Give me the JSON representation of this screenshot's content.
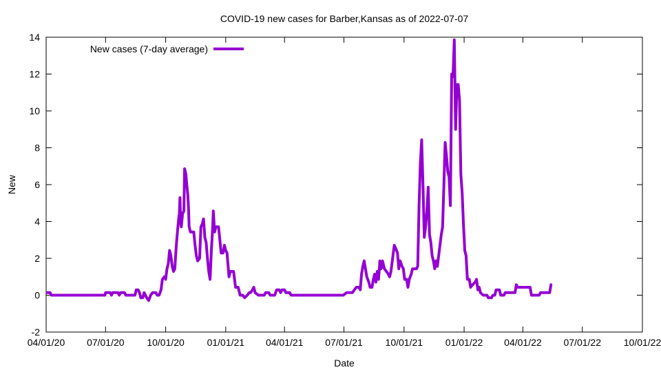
{
  "chart_data": {
    "type": "line",
    "title": "COVID-19 new cases for Barber,Kansas as of 2022-07-07",
    "xlabel": "Date",
    "ylabel": "New",
    "xlim": [
      "2020-04-01",
      "2022-10-01"
    ],
    "ylim": [
      -2,
      14
    ],
    "x_ticks": [
      "04/01/20",
      "07/01/20",
      "10/01/20",
      "01/01/21",
      "04/01/21",
      "07/01/21",
      "10/01/21",
      "01/01/22",
      "04/01/22",
      "07/01/22",
      "10/01/22"
    ],
    "y_ticks": [
      -2,
      0,
      2,
      4,
      6,
      8,
      10,
      12,
      14
    ],
    "grid": false,
    "legend_position": "top-left",
    "series": [
      {
        "name": "New cases (7-day average)",
        "color": "#9400d3",
        "points": [
          [
            "2020-04-03",
            0.14
          ],
          [
            "2020-04-07",
            0.14
          ],
          [
            "2020-04-09",
            0
          ],
          [
            "2020-06-30",
            0
          ],
          [
            "2020-07-01",
            0.14
          ],
          [
            "2020-07-08",
            0.14
          ],
          [
            "2020-07-10",
            0
          ],
          [
            "2020-07-12",
            0.14
          ],
          [
            "2020-07-20",
            0.14
          ],
          [
            "2020-07-22",
            0
          ],
          [
            "2020-07-24",
            0.14
          ],
          [
            "2020-07-30",
            0.14
          ],
          [
            "2020-08-01",
            0
          ],
          [
            "2020-08-15",
            0
          ],
          [
            "2020-08-17",
            0.29
          ],
          [
            "2020-08-20",
            0.29
          ],
          [
            "2020-08-22",
            0.14
          ],
          [
            "2020-08-24",
            -0.14
          ],
          [
            "2020-08-27",
            -0.14
          ],
          [
            "2020-08-29",
            0.14
          ],
          [
            "2020-09-02",
            -0.14
          ],
          [
            "2020-09-05",
            -0.29
          ],
          [
            "2020-09-08",
            0
          ],
          [
            "2020-09-11",
            0.14
          ],
          [
            "2020-09-16",
            0.14
          ],
          [
            "2020-09-18",
            0
          ],
          [
            "2020-09-21",
            0
          ],
          [
            "2020-09-24",
            0.29
          ],
          [
            "2020-09-26",
            0.86
          ],
          [
            "2020-09-29",
            1.0
          ],
          [
            "2020-10-01",
            0.86
          ],
          [
            "2020-10-03",
            1.43
          ],
          [
            "2020-10-05",
            1.71
          ],
          [
            "2020-10-07",
            2.43
          ],
          [
            "2020-10-09",
            2.14
          ],
          [
            "2020-10-11",
            1.57
          ],
          [
            "2020-10-13",
            1.29
          ],
          [
            "2020-10-15",
            1.43
          ],
          [
            "2020-10-17",
            2.57
          ],
          [
            "2020-10-19",
            3.43
          ],
          [
            "2020-10-21",
            4.14
          ],
          [
            "2020-10-22",
            4.43
          ],
          [
            "2020-10-23",
            5.29
          ],
          [
            "2020-10-24",
            4.0
          ],
          [
            "2020-10-25",
            3.71
          ],
          [
            "2020-10-27",
            4.43
          ],
          [
            "2020-10-29",
            4.57
          ],
          [
            "2020-10-30",
            6.86
          ],
          [
            "2020-11-01",
            6.57
          ],
          [
            "2020-11-02",
            6.14
          ],
          [
            "2020-11-04",
            5.43
          ],
          [
            "2020-11-05",
            4.71
          ],
          [
            "2020-11-06",
            3.71
          ],
          [
            "2020-11-08",
            3.43
          ],
          [
            "2020-11-13",
            3.43
          ],
          [
            "2020-11-15",
            2.71
          ],
          [
            "2020-11-17",
            2.14
          ],
          [
            "2020-11-19",
            1.86
          ],
          [
            "2020-11-22",
            2.0
          ],
          [
            "2020-11-24",
            3.71
          ],
          [
            "2020-11-26",
            3.86
          ],
          [
            "2020-11-28",
            4.14
          ],
          [
            "2020-11-30",
            3.14
          ],
          [
            "2020-12-02",
            2.86
          ],
          [
            "2020-12-04",
            2.0
          ],
          [
            "2020-12-06",
            1.29
          ],
          [
            "2020-12-08",
            0.86
          ],
          [
            "2020-12-10",
            2.43
          ],
          [
            "2020-12-12",
            3.71
          ],
          [
            "2020-12-13",
            4.57
          ],
          [
            "2020-12-15",
            3.43
          ],
          [
            "2020-12-17",
            3.71
          ],
          [
            "2020-12-21",
            3.71
          ],
          [
            "2020-12-23",
            3.0
          ],
          [
            "2020-12-25",
            2.29
          ],
          [
            "2020-12-28",
            2.29
          ],
          [
            "2020-12-30",
            2.71
          ],
          [
            "2021-01-01",
            2.43
          ],
          [
            "2021-01-03",
            2.29
          ],
          [
            "2021-01-06",
            1.0
          ],
          [
            "2021-01-08",
            1.29
          ],
          [
            "2021-01-13",
            1.29
          ],
          [
            "2021-01-16",
            0.43
          ],
          [
            "2021-01-20",
            0.43
          ],
          [
            "2021-01-23",
            0
          ],
          [
            "2021-01-27",
            0
          ],
          [
            "2021-01-30",
            -0.14
          ],
          [
            "2021-02-03",
            0
          ],
          [
            "2021-02-06",
            0.14
          ],
          [
            "2021-02-08",
            0.14
          ],
          [
            "2021-02-11",
            0.29
          ],
          [
            "2021-02-13",
            0.43
          ],
          [
            "2021-02-15",
            0.14
          ],
          [
            "2021-02-20",
            0
          ],
          [
            "2021-03-01",
            0
          ],
          [
            "2021-03-03",
            0.14
          ],
          [
            "2021-03-08",
            0.14
          ],
          [
            "2021-03-10",
            0
          ],
          [
            "2021-03-17",
            0
          ],
          [
            "2021-03-20",
            0.29
          ],
          [
            "2021-03-24",
            0.29
          ],
          [
            "2021-03-26",
            0.14
          ],
          [
            "2021-03-28",
            0.29
          ],
          [
            "2021-04-01",
            0.29
          ],
          [
            "2021-04-03",
            0.14
          ],
          [
            "2021-04-09",
            0.14
          ],
          [
            "2021-04-11",
            0
          ],
          [
            "2021-06-30",
            0
          ],
          [
            "2021-07-05",
            0.14
          ],
          [
            "2021-07-14",
            0.14
          ],
          [
            "2021-07-17",
            0.29
          ],
          [
            "2021-07-20",
            0.43
          ],
          [
            "2021-07-24",
            0.43
          ],
          [
            "2021-07-26",
            0.29
          ],
          [
            "2021-07-28",
            1.14
          ],
          [
            "2021-07-30",
            1.57
          ],
          [
            "2021-08-01",
            1.86
          ],
          [
            "2021-08-03",
            1.43
          ],
          [
            "2021-08-05",
            1.0
          ],
          [
            "2021-08-08",
            0.71
          ],
          [
            "2021-08-10",
            0.43
          ],
          [
            "2021-08-13",
            0.43
          ],
          [
            "2021-08-15",
            0.86
          ],
          [
            "2021-08-17",
            1.14
          ],
          [
            "2021-08-19",
            0.71
          ],
          [
            "2021-08-21",
            1.29
          ],
          [
            "2021-08-23",
            0.86
          ],
          [
            "2021-08-25",
            1.86
          ],
          [
            "2021-08-27",
            1.43
          ],
          [
            "2021-08-29",
            1.86
          ],
          [
            "2021-09-01",
            1.43
          ],
          [
            "2021-09-04",
            1.29
          ],
          [
            "2021-09-07",
            1.14
          ],
          [
            "2021-09-09",
            1.0
          ],
          [
            "2021-09-11",
            1.29
          ],
          [
            "2021-09-14",
            2.14
          ],
          [
            "2021-09-16",
            2.71
          ],
          [
            "2021-09-18",
            2.57
          ],
          [
            "2021-09-21",
            2.29
          ],
          [
            "2021-09-23",
            1.43
          ],
          [
            "2021-09-25",
            1.86
          ],
          [
            "2021-09-28",
            1.57
          ],
          [
            "2021-09-30",
            1.43
          ],
          [
            "2021-10-02",
            0.86
          ],
          [
            "2021-10-05",
            0.86
          ],
          [
            "2021-10-07",
            0.43
          ],
          [
            "2021-10-09",
            0.86
          ],
          [
            "2021-10-12",
            1.14
          ],
          [
            "2021-10-14",
            1.43
          ],
          [
            "2021-10-20",
            1.43
          ],
          [
            "2021-10-22",
            1.57
          ],
          [
            "2021-10-24",
            4.86
          ],
          [
            "2021-10-26",
            7.14
          ],
          [
            "2021-10-28",
            8.43
          ],
          [
            "2021-10-30",
            6.0
          ],
          [
            "2021-11-01",
            3.14
          ],
          [
            "2021-11-03",
            3.71
          ],
          [
            "2021-11-05",
            4.57
          ],
          [
            "2021-11-07",
            5.86
          ],
          [
            "2021-11-09",
            3.29
          ],
          [
            "2021-11-11",
            2.86
          ],
          [
            "2021-11-13",
            2.14
          ],
          [
            "2021-11-15",
            1.86
          ],
          [
            "2021-11-17",
            1.43
          ],
          [
            "2021-11-19",
            1.86
          ],
          [
            "2021-11-21",
            1.57
          ],
          [
            "2021-11-23",
            2.14
          ],
          [
            "2021-11-25",
            2.71
          ],
          [
            "2021-11-27",
            3.29
          ],
          [
            "2021-11-29",
            3.71
          ],
          [
            "2021-12-01",
            5.86
          ],
          [
            "2021-12-03",
            8.29
          ],
          [
            "2021-12-05",
            7.57
          ],
          [
            "2021-12-07",
            6.71
          ],
          [
            "2021-12-09",
            6.43
          ],
          [
            "2021-12-11",
            4.86
          ],
          [
            "2021-12-13",
            12.0
          ],
          [
            "2021-12-15",
            11.86
          ],
          [
            "2021-12-17",
            13.86
          ],
          [
            "2021-12-19",
            9.0
          ],
          [
            "2021-12-21",
            11.43
          ],
          [
            "2021-12-23",
            11.43
          ],
          [
            "2021-12-25",
            10.57
          ],
          [
            "2021-12-27",
            6.57
          ],
          [
            "2021-12-29",
            5.57
          ],
          [
            "2021-12-31",
            3.86
          ],
          [
            "2022-01-02",
            2.43
          ],
          [
            "2022-01-04",
            2.14
          ],
          [
            "2022-01-06",
            0.86
          ],
          [
            "2022-01-09",
            0.86
          ],
          [
            "2022-01-11",
            0.43
          ],
          [
            "2022-01-14",
            0.57
          ],
          [
            "2022-01-18",
            0.71
          ],
          [
            "2022-01-20",
            0.86
          ],
          [
            "2022-01-22",
            0.29
          ],
          [
            "2022-01-24",
            0.43
          ],
          [
            "2022-01-26",
            0.14
          ],
          [
            "2022-01-30",
            0
          ],
          [
            "2022-02-05",
            0
          ],
          [
            "2022-02-07",
            -0.14
          ],
          [
            "2022-02-12",
            -0.14
          ],
          [
            "2022-02-14",
            0
          ],
          [
            "2022-02-17",
            0
          ],
          [
            "2022-02-19",
            0.29
          ],
          [
            "2022-02-24",
            0.29
          ],
          [
            "2022-02-26",
            0
          ],
          [
            "2022-03-03",
            0
          ],
          [
            "2022-03-05",
            0.14
          ],
          [
            "2022-03-20",
            0.14
          ],
          [
            "2022-03-22",
            0.57
          ],
          [
            "2022-03-24",
            0.43
          ],
          [
            "2022-04-12",
            0.43
          ],
          [
            "2022-04-14",
            0
          ],
          [
            "2022-04-26",
            0
          ],
          [
            "2022-04-28",
            0.14
          ],
          [
            "2022-05-10",
            0.14
          ],
          [
            "2022-05-12",
            0.14
          ],
          [
            "2022-05-14",
            0.57
          ]
        ]
      }
    ]
  }
}
